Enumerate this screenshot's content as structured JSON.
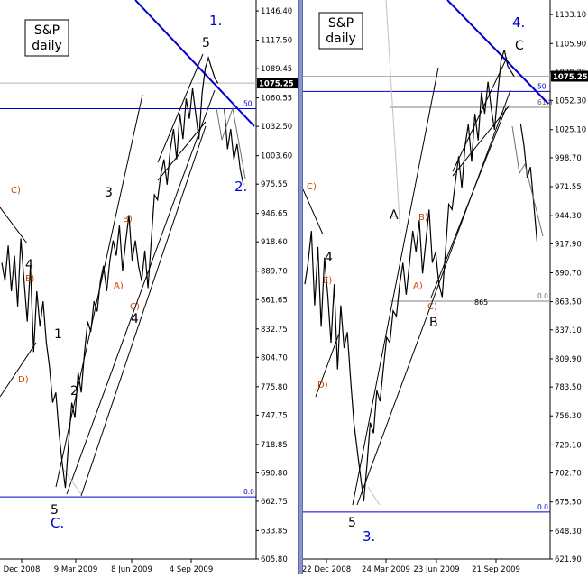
{
  "colors": {
    "price": "#000000",
    "trend": "#0000cc",
    "channel": "#000000",
    "fib": "#0000cc",
    "wave_black": "#000000",
    "wave_orange": "#cc4400",
    "wave_blue": "#0000cc",
    "grid": "#c8c8c8",
    "divider": "#8a96c8"
  },
  "chart_data": [
    {
      "type": "line",
      "title": "S&P\ndaily",
      "title_lines": [
        "S&P",
        "daily"
      ],
      "ylim": [
        605.8,
        1150
      ],
      "y_ticks": [
        "1146.40",
        "1117.50",
        "1089.45",
        "1060.55",
        "1032.50",
        "1003.60",
        "975.55",
        "946.65",
        "918.60",
        "889.70",
        "861.65",
        "832.75",
        "804.70",
        "775.80",
        "747.75",
        "718.85",
        "690.80",
        "662.75",
        "633.85",
        "605.80"
      ],
      "x_tick_labels": [
        "Dec 2008",
        "9 Mar 2009",
        "8 Jun 2009",
        "4 Sep 2009"
      ],
      "last_price_label": "1075.25",
      "last_price": 1075.25,
      "fib_labels": [
        "50",
        "0.0"
      ],
      "fib_values": [
        1050,
        667
      ],
      "wave_labels_black": [
        "4",
        "1",
        "2",
        "3",
        "4",
        "5",
        "5"
      ],
      "wave_labels_orange": [
        "C)",
        "E)",
        "D)",
        "B)",
        "A)",
        "C)"
      ],
      "wave_labels_blue": [
        "1.",
        "2.",
        "C."
      ],
      "series": [
        {
          "x": [
            0,
            1,
            2,
            3,
            4,
            5,
            6,
            7,
            8,
            9,
            10,
            11,
            12,
            13,
            14,
            15,
            16,
            17,
            18,
            19,
            20,
            21,
            22,
            23,
            24,
            25,
            26,
            27,
            28,
            29,
            30,
            31,
            32,
            33,
            34,
            35,
            36,
            37,
            38,
            39,
            40,
            41,
            42,
            43,
            44,
            45,
            46,
            47,
            48,
            49,
            50,
            51,
            52,
            53,
            54,
            55,
            56,
            57,
            58,
            59,
            60,
            61,
            62,
            63,
            64,
            65,
            66,
            67,
            68,
            69,
            70,
            71,
            72,
            73,
            74,
            75,
            76,
            77,
            78,
            79,
            80
          ],
          "y": [
            898,
            880,
            915,
            870,
            905,
            855,
            922,
            880,
            840,
            895,
            810,
            870,
            835,
            860,
            820,
            795,
            760,
            770,
            730,
            700,
            676,
            720,
            760,
            745,
            790,
            770,
            810,
            840,
            830,
            860,
            850,
            880,
            895,
            870,
            900,
            920,
            905,
            935,
            890,
            920,
            945,
            900,
            920,
            895,
            880,
            910,
            873,
            920,
            965,
            960,
            985,
            1000,
            975,
            1010,
            1030,
            1000,
            1045,
            1020,
            1060,
            1040,
            1070,
            1045,
            1020,
            1065,
            1090,
            1100,
            1090,
            1080,
            1075,
            null,
            1050,
            1010,
            1030,
            1000,
            1015,
            990,
            975,
            null,
            null,
            null,
            null
          ]
        }
      ]
    },
    {
      "type": "line",
      "title": "S&P\ndaily",
      "title_lines": [
        "S&P",
        "daily"
      ],
      "ylim": [
        621.9,
        1140
      ],
      "y_ticks": [
        "1133.10",
        "1105.90",
        "1079.25",
        "1052.30",
        "1025.10",
        "998.70",
        "971.55",
        "944.30",
        "917.90",
        "890.70",
        "863.50",
        "837.10",
        "809.90",
        "783.50",
        "756.30",
        "729.10",
        "702.70",
        "675.50",
        "648.30",
        "621.90"
      ],
      "x_tick_labels": [
        "22 Dec 2008",
        "24 Mar 2009",
        "23 Jun 2009",
        "21 Sep 2009"
      ],
      "last_price_label": "1075.25",
      "last_price": 1075.25,
      "fib_labels": [
        "50",
        "61.8",
        "0.0",
        "0.0"
      ],
      "fib_values": [
        1061,
        1046,
        864,
        666
      ],
      "level_label": "865",
      "wave_labels_black": [
        "4",
        "A",
        "B",
        "C",
        "5"
      ],
      "wave_labels_orange": [
        "C)",
        "E)",
        "D)",
        "B)",
        "A)",
        "C)"
      ],
      "wave_labels_blue": [
        "4.",
        "3."
      ],
      "series": [
        {
          "x": [
            0,
            1,
            2,
            3,
            4,
            5,
            6,
            7,
            8,
            9,
            10,
            11,
            12,
            13,
            14,
            15,
            16,
            17,
            18,
            19,
            20,
            21,
            22,
            23,
            24,
            25,
            26,
            27,
            28,
            29,
            30,
            31,
            32,
            33,
            34,
            35,
            36,
            37,
            38,
            39,
            40,
            41,
            42,
            43,
            44,
            45,
            46,
            47,
            48,
            49,
            50,
            51,
            52,
            53,
            54,
            55,
            56,
            57,
            58,
            59,
            60,
            61,
            62,
            63,
            64,
            65,
            66,
            67,
            68,
            69,
            70,
            71,
            72,
            73,
            74,
            75
          ],
          "y": [
            880,
            900,
            930,
            860,
            915,
            840,
            905,
            870,
            825,
            880,
            800,
            860,
            820,
            835,
            790,
            750,
            725,
            700,
            676,
            710,
            750,
            740,
            780,
            770,
            800,
            830,
            825,
            855,
            850,
            880,
            900,
            870,
            900,
            930,
            910,
            940,
            890,
            920,
            950,
            900,
            910,
            880,
            868,
            910,
            955,
            950,
            975,
            1000,
            970,
            1010,
            1030,
            995,
            1040,
            1015,
            1060,
            1040,
            1070,
            1045,
            1025,
            1060,
            1090,
            1100,
            1085,
            1080,
            1075,
            null,
            1030,
            1010,
            980,
            990,
            955,
            920,
            null,
            null,
            null,
            null
          ]
        }
      ]
    }
  ]
}
